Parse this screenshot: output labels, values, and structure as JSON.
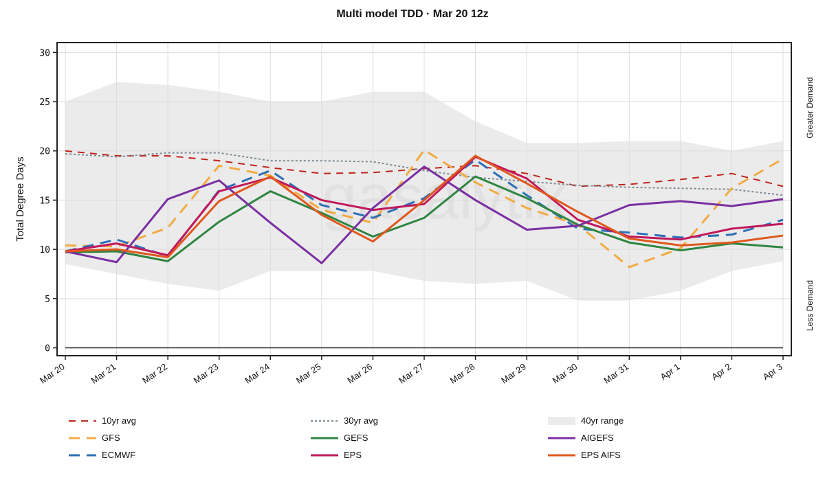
{
  "chart_data": {
    "type": "line",
    "title": "Multi model TDD · Mar 20 12z",
    "xlabel": "",
    "ylabel": "Total Degree Days",
    "right_labels": {
      "top": "Greater Demand",
      "bottom": "Less Demand"
    },
    "watermark": "gasalytix",
    "ylim": [
      -0.8,
      31
    ],
    "yticks": [
      0,
      5,
      10,
      15,
      20,
      25,
      30
    ],
    "categories": [
      "Mar 20",
      "Mar 21",
      "Mar 22",
      "Mar 23",
      "Mar 24",
      "Mar 25",
      "Mar 26",
      "Mar 27",
      "Mar 28",
      "Mar 29",
      "Mar 30",
      "Mar 31",
      "Apr 1",
      "Apr 2",
      "Apr 3"
    ],
    "grid": true,
    "range": {
      "name": "40yr range",
      "color": "#ebebeb",
      "upper": [
        25.0,
        27.0,
        26.7,
        26.0,
        25.0,
        25.0,
        26.0,
        26.0,
        23.0,
        20.8,
        20.8,
        21.0,
        21.0,
        20.0,
        21.0
      ],
      "lower": [
        8.5,
        7.5,
        6.5,
        5.8,
        7.8,
        7.8,
        7.8,
        6.8,
        6.5,
        6.8,
        4.8,
        4.8,
        5.8,
        7.8,
        8.8
      ]
    },
    "series": [
      {
        "name": "10yr avg",
        "color": "#c0251c",
        "dash": "10,8",
        "width": 2,
        "values": [
          20.0,
          19.5,
          19.5,
          19.0,
          18.3,
          17.7,
          17.8,
          18.2,
          18.5,
          17.7,
          16.4,
          16.6,
          17.1,
          17.7,
          16.4
        ]
      },
      {
        "name": "30yr avg",
        "color": "#7d8b95",
        "dash": "3,3",
        "width": 2,
        "values": [
          19.7,
          19.4,
          19.8,
          19.8,
          19.0,
          19.0,
          18.9,
          18.0,
          17.3,
          16.9,
          16.5,
          16.3,
          16.2,
          16.1,
          15.5
        ]
      },
      {
        "name": "GFS",
        "color": "#f2ab41",
        "dash": "16,10",
        "width": 3,
        "values": [
          10.4,
          10.3,
          12.2,
          18.5,
          17.5,
          14.0,
          12.7,
          20.1,
          16.8,
          14.2,
          12.5,
          8.2,
          10.1,
          16.2,
          19.2
        ]
      },
      {
        "name": "ECMWF",
        "color": "#2c6fb7",
        "dash": "16,10",
        "width": 3,
        "values": [
          9.8,
          11.0,
          9.3,
          16.0,
          18.0,
          14.5,
          13.2,
          15.2,
          19.1,
          15.5,
          12.1,
          11.7,
          11.2,
          11.5,
          13.0
        ]
      },
      {
        "name": "GEFS",
        "color": "#2e8540",
        "dash": "",
        "width": 3,
        "values": [
          9.7,
          9.8,
          8.8,
          12.8,
          15.9,
          13.7,
          11.3,
          13.2,
          17.4,
          15.2,
          12.5,
          10.7,
          9.9,
          10.6,
          10.2
        ]
      },
      {
        "name": "EPS",
        "color": "#c2185b",
        "dash": "",
        "width": 3,
        "values": [
          9.8,
          10.6,
          9.4,
          15.9,
          17.3,
          15.0,
          14.0,
          14.6,
          19.4,
          17.2,
          13.0,
          11.3,
          11.0,
          12.1,
          12.6
        ]
      },
      {
        "name": "AIGEFS",
        "color": "#7b2fa1",
        "dash": "",
        "width": 3,
        "values": [
          9.8,
          8.7,
          15.1,
          17.0,
          12.7,
          8.6,
          14.2,
          18.4,
          15.0,
          12.0,
          12.4,
          14.5,
          14.9,
          14.4,
          15.1
        ]
      },
      {
        "name": "EPS AIFS",
        "color": "#e0581c",
        "dash": "",
        "width": 3,
        "values": [
          9.8,
          10.0,
          9.2,
          14.9,
          17.4,
          13.5,
          10.8,
          15.0,
          19.5,
          16.7,
          13.8,
          11.1,
          10.4,
          10.7,
          11.4
        ]
      }
    ],
    "legend": {
      "position": "bottom",
      "items": [
        "10yr avg",
        "30yr avg",
        "40yr range",
        "GFS",
        "GEFS",
        "AIGEFS",
        "ECMWF",
        "EPS",
        "EPS AIFS"
      ]
    }
  }
}
